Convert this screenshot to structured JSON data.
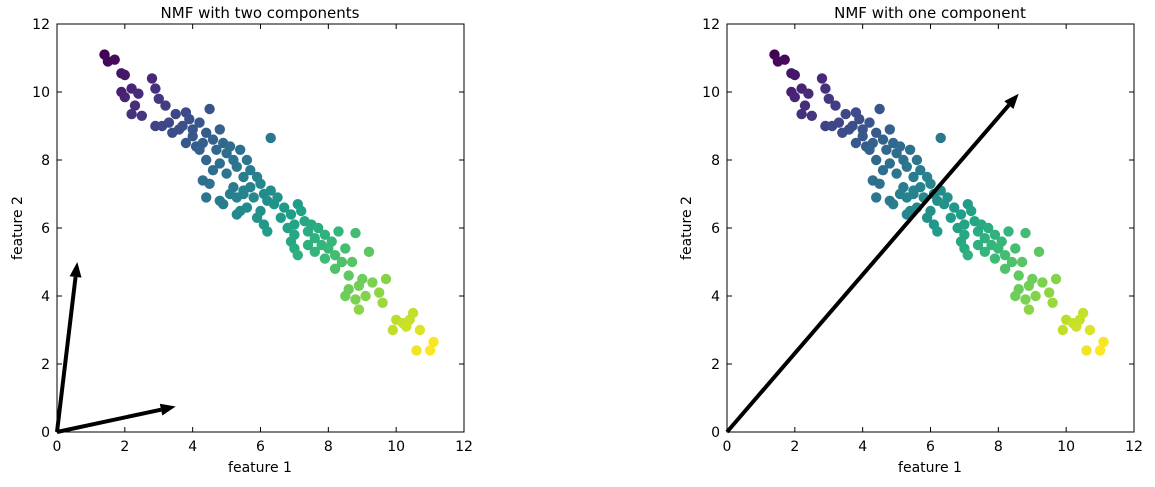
{
  "chart_data": [
    {
      "type": "scatter",
      "title": "NMF with two components",
      "xlabel": "feature 1",
      "ylabel": "feature 2",
      "xlim": [
        0,
        12
      ],
      "ylim": [
        0,
        12
      ],
      "xticks": [
        "0",
        "2",
        "4",
        "6",
        "8",
        "10",
        "12"
      ],
      "yticks": [
        "0",
        "2",
        "4",
        "6",
        "8",
        "10",
        "12"
      ],
      "grid": false,
      "colormap": "viridis",
      "arrows": [
        {
          "from": [
            0,
            0
          ],
          "to": [
            0.6,
            5.0
          ]
        },
        {
          "from": [
            0,
            0
          ],
          "to": [
            3.5,
            0.75
          ]
        }
      ]
    },
    {
      "type": "scatter",
      "title": "NMF with one component",
      "xlabel": "feature 1",
      "ylabel": "feature 2",
      "xlim": [
        0,
        12
      ],
      "ylim": [
        0,
        12
      ],
      "xticks": [
        "0",
        "2",
        "4",
        "6",
        "8",
        "10",
        "12"
      ],
      "yticks": [
        "0",
        "2",
        "4",
        "6",
        "8",
        "10",
        "12"
      ],
      "grid": false,
      "colormap": "viridis",
      "arrows": [
        {
          "from": [
            0,
            0
          ],
          "to": [
            8.6,
            9.95
          ]
        }
      ]
    }
  ],
  "points": [
    [
      1.4,
      11.1
    ],
    [
      1.5,
      10.9
    ],
    [
      1.7,
      10.95
    ],
    [
      1.9,
      10.55
    ],
    [
      2.0,
      10.5
    ],
    [
      1.9,
      10.0
    ],
    [
      2.0,
      9.85
    ],
    [
      2.2,
      10.1
    ],
    [
      2.4,
      9.95
    ],
    [
      2.3,
      9.6
    ],
    [
      2.2,
      9.35
    ],
    [
      2.5,
      9.3
    ],
    [
      2.8,
      10.4
    ],
    [
      2.9,
      10.1
    ],
    [
      3.0,
      9.8
    ],
    [
      2.9,
      9.0
    ],
    [
      3.2,
      9.6
    ],
    [
      3.3,
      9.1
    ],
    [
      3.1,
      9.0
    ],
    [
      3.5,
      9.35
    ],
    [
      3.6,
      8.9
    ],
    [
      3.4,
      8.8
    ],
    [
      3.7,
      9.0
    ],
    [
      3.8,
      9.4
    ],
    [
      3.9,
      9.2
    ],
    [
      4.0,
      8.7
    ],
    [
      3.8,
      8.5
    ],
    [
      4.1,
      8.4
    ],
    [
      4.2,
      9.1
    ],
    [
      4.4,
      8.8
    ],
    [
      4.5,
      9.5
    ],
    [
      4.3,
      8.5
    ],
    [
      4.6,
      8.6
    ],
    [
      4.8,
      8.9
    ],
    [
      4.7,
      8.3
    ],
    [
      4.4,
      8.0
    ],
    [
      4.2,
      8.3
    ],
    [
      4.9,
      8.5
    ],
    [
      5.0,
      8.2
    ],
    [
      5.1,
      8.4
    ],
    [
      5.2,
      8.0
    ],
    [
      4.8,
      7.9
    ],
    [
      4.6,
      7.7
    ],
    [
      4.5,
      7.3
    ],
    [
      4.3,
      7.4
    ],
    [
      4.4,
      6.9
    ],
    [
      5.0,
      7.6
    ],
    [
      5.3,
      7.8
    ],
    [
      5.4,
      8.3
    ],
    [
      5.5,
      7.5
    ],
    [
      5.6,
      8.0
    ],
    [
      5.7,
      7.7
    ],
    [
      5.2,
      7.2
    ],
    [
      5.1,
      7.0
    ],
    [
      4.9,
      6.7
    ],
    [
      4.8,
      6.8
    ],
    [
      5.3,
      6.9
    ],
    [
      5.5,
      7.1
    ],
    [
      5.7,
      7.2
    ],
    [
      5.8,
      6.9
    ],
    [
      5.9,
      7.5
    ],
    [
      6.0,
      7.3
    ],
    [
      5.4,
      6.5
    ],
    [
      5.3,
      6.4
    ],
    [
      5.6,
      6.6
    ],
    [
      6.1,
      7.0
    ],
    [
      6.2,
      6.8
    ],
    [
      6.3,
      7.1
    ],
    [
      6.0,
      6.5
    ],
    [
      5.9,
      6.3
    ],
    [
      6.4,
      6.7
    ],
    [
      6.5,
      6.9
    ],
    [
      6.1,
      6.1
    ],
    [
      6.2,
      5.9
    ],
    [
      6.6,
      6.3
    ],
    [
      6.7,
      6.6
    ],
    [
      6.8,
      6.0
    ],
    [
      6.9,
      6.4
    ],
    [
      7.0,
      6.1
    ],
    [
      7.1,
      6.7
    ],
    [
      7.2,
      6.5
    ],
    [
      7.3,
      6.2
    ],
    [
      7.0,
      5.8
    ],
    [
      6.9,
      5.6
    ],
    [
      7.4,
      5.9
    ],
    [
      7.5,
      6.1
    ],
    [
      7.6,
      5.7
    ],
    [
      7.7,
      6.0
    ],
    [
      7.8,
      5.5
    ],
    [
      7.9,
      5.8
    ],
    [
      7.6,
      5.3
    ],
    [
      7.4,
      5.5
    ],
    [
      8.0,
      5.4
    ],
    [
      8.1,
      5.6
    ],
    [
      7.9,
      5.1
    ],
    [
      8.2,
      5.2
    ],
    [
      8.3,
      5.9
    ],
    [
      8.4,
      5.0
    ],
    [
      8.2,
      4.8
    ],
    [
      8.5,
      5.4
    ],
    [
      8.6,
      4.6
    ],
    [
      8.8,
      5.85
    ],
    [
      8.7,
      5.0
    ],
    [
      8.9,
      4.3
    ],
    [
      8.6,
      4.2
    ],
    [
      9.0,
      4.5
    ],
    [
      9.1,
      4.0
    ],
    [
      9.2,
      5.3
    ],
    [
      8.8,
      3.9
    ],
    [
      8.5,
      4.0
    ],
    [
      8.9,
      3.6
    ],
    [
      9.3,
      4.4
    ],
    [
      9.5,
      4.1
    ],
    [
      9.6,
      3.8
    ],
    [
      9.7,
      4.5
    ],
    [
      10.0,
      3.3
    ],
    [
      10.2,
      3.2
    ],
    [
      9.9,
      3.0
    ],
    [
      10.4,
      3.3
    ],
    [
      10.5,
      3.5
    ],
    [
      10.3,
      3.1
    ],
    [
      10.7,
      3.0
    ],
    [
      10.6,
      2.4
    ],
    [
      11.0,
      2.4
    ],
    [
      11.1,
      2.65
    ],
    [
      6.3,
      8.65
    ],
    [
      5.5,
      7.0
    ],
    [
      7.0,
      5.4
    ],
    [
      7.1,
      5.2
    ],
    [
      4.0,
      8.9
    ]
  ]
}
